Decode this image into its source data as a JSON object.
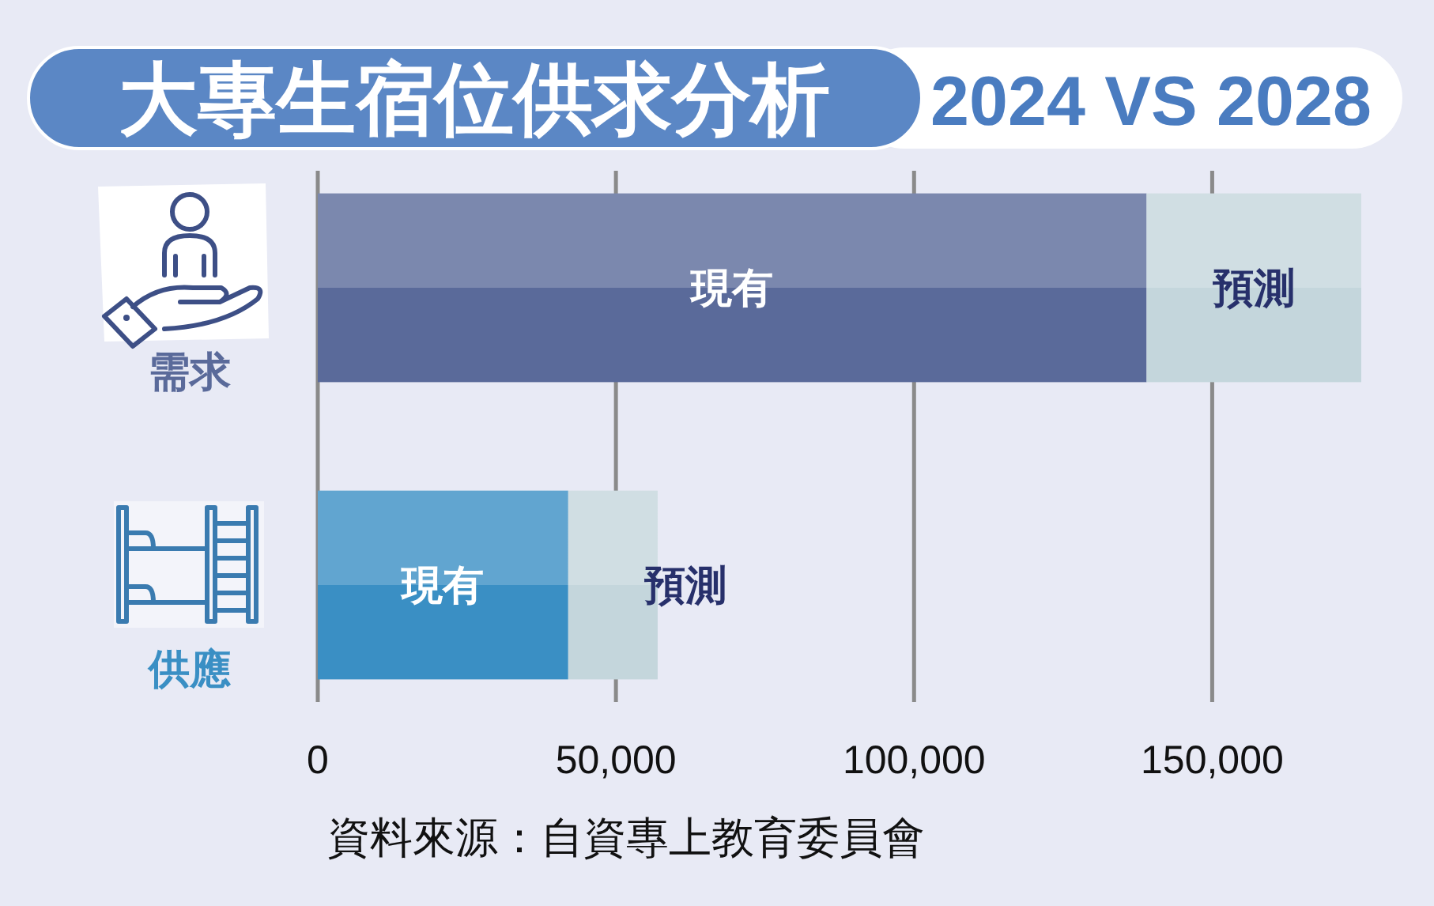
{
  "chart_data": {
    "type": "bar",
    "orientation": "horizontal",
    "stacked": true,
    "title": "大專生宿位供求分析",
    "subtitle": "2024 VS 2028",
    "categories": [
      "需求",
      "供應"
    ],
    "series": [
      {
        "name": "現有",
        "colors": [
          "#5a6a9a",
          "#3a8fc4"
        ],
        "values": [
          139000,
          42000
        ]
      },
      {
        "name": "預測",
        "colors": [
          "#c4d6dc",
          "#c4d6dc"
        ],
        "values": [
          36000,
          15000
        ]
      }
    ],
    "xlim": [
      0,
      175000
    ],
    "xticks": [
      0,
      {
        "value": 50000,
        "label": "50,000"
      },
      {
        "value": 100000,
        "label": "100,000"
      },
      {
        "value": 150000,
        "label": "150,000"
      }
    ],
    "grid": "x",
    "annotations": [
      "資料來源：自資專上教育委員會"
    ]
  }
}
